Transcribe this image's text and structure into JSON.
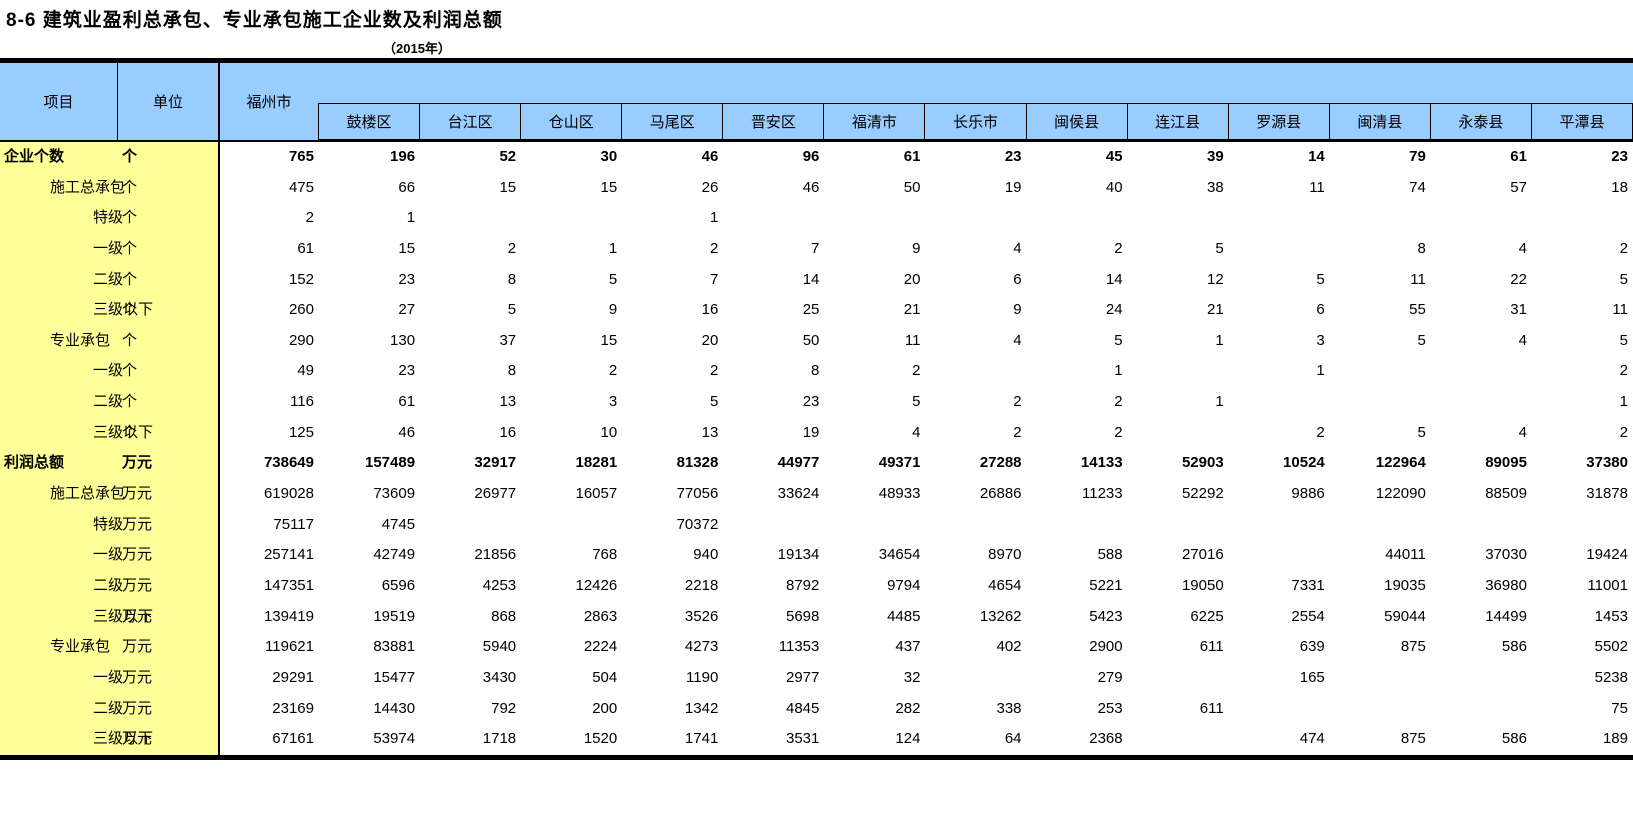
{
  "title": "8-6 建筑业盈利总承包、专业承包施工企业数及利润总额",
  "subtitle": "（2015年）",
  "colors": {
    "header_bg": "#99CCFF",
    "label_bg": "#FFFF99",
    "border": "#000000",
    "text": "#000000"
  },
  "header": {
    "item_label": "项目",
    "unit_label": "单位",
    "city_label": "福州市",
    "districts": [
      "鼓楼区",
      "台江区",
      "仓山区",
      "马尾区",
      "晋安区",
      "福清市",
      "长乐市",
      "闽侯县",
      "连江县",
      "罗源县",
      "闽清县",
      "永泰县",
      "平潭县"
    ]
  },
  "table": {
    "columns": [
      "福州市",
      "鼓楼区",
      "台江区",
      "仓山区",
      "马尾区",
      "晋安区",
      "福清市",
      "长乐市",
      "闽侯县",
      "连江县",
      "罗源县",
      "闽清县",
      "永泰县",
      "平潭县"
    ],
    "rows": [
      {
        "label": "企业个数",
        "unit": "个",
        "level": 0,
        "bold": true,
        "values": [
          "765",
          "196",
          "52",
          "30",
          "46",
          "96",
          "61",
          "23",
          "45",
          "39",
          "14",
          "79",
          "61",
          "23"
        ]
      },
      {
        "label": "施工总承包",
        "unit": "个",
        "level": 1,
        "bold": false,
        "values": [
          "475",
          "66",
          "15",
          "15",
          "26",
          "46",
          "50",
          "19",
          "40",
          "38",
          "11",
          "74",
          "57",
          "18"
        ]
      },
      {
        "label": "特级",
        "unit": "个",
        "level": 2,
        "bold": false,
        "values": [
          "2",
          "1",
          "",
          "",
          "1",
          "",
          "",
          "",
          "",
          "",
          "",
          "",
          "",
          ""
        ]
      },
      {
        "label": "一级",
        "unit": "个",
        "level": 2,
        "bold": false,
        "values": [
          "61",
          "15",
          "2",
          "1",
          "2",
          "7",
          "9",
          "4",
          "2",
          "5",
          "",
          "8",
          "4",
          "2"
        ]
      },
      {
        "label": "二级",
        "unit": "个",
        "level": 2,
        "bold": false,
        "values": [
          "152",
          "23",
          "8",
          "5",
          "7",
          "14",
          "20",
          "6",
          "14",
          "12",
          "5",
          "11",
          "22",
          "5"
        ]
      },
      {
        "label": "三级以下",
        "unit": "个",
        "level": 2,
        "bold": false,
        "values": [
          "260",
          "27",
          "5",
          "9",
          "16",
          "25",
          "21",
          "9",
          "24",
          "21",
          "6",
          "55",
          "31",
          "11"
        ]
      },
      {
        "label": "专业承包",
        "unit": "个",
        "level": 1,
        "bold": false,
        "values": [
          "290",
          "130",
          "37",
          "15",
          "20",
          "50",
          "11",
          "4",
          "5",
          "1",
          "3",
          "5",
          "4",
          "5"
        ]
      },
      {
        "label": "一级",
        "unit": "个",
        "level": 2,
        "bold": false,
        "values": [
          "49",
          "23",
          "8",
          "2",
          "2",
          "8",
          "2",
          "",
          "1",
          "",
          "1",
          "",
          "",
          "2"
        ]
      },
      {
        "label": "二级",
        "unit": "个",
        "level": 2,
        "bold": false,
        "values": [
          "116",
          "61",
          "13",
          "3",
          "5",
          "23",
          "5",
          "2",
          "2",
          "1",
          "",
          "",
          "",
          "1"
        ]
      },
      {
        "label": "三级以下",
        "unit": "个",
        "level": 2,
        "bold": false,
        "values": [
          "125",
          "46",
          "16",
          "10",
          "13",
          "19",
          "4",
          "2",
          "2",
          "",
          "2",
          "5",
          "4",
          "2"
        ]
      },
      {
        "label": "利润总额",
        "unit": "万元",
        "level": 0,
        "bold": true,
        "values": [
          "738649",
          "157489",
          "32917",
          "18281",
          "81328",
          "44977",
          "49371",
          "27288",
          "14133",
          "52903",
          "10524",
          "122964",
          "89095",
          "37380"
        ]
      },
      {
        "label": "施工总承包",
        "unit": "万元",
        "level": 1,
        "bold": false,
        "values": [
          "619028",
          "73609",
          "26977",
          "16057",
          "77056",
          "33624",
          "48933",
          "26886",
          "11233",
          "52292",
          "9886",
          "122090",
          "88509",
          "31878"
        ]
      },
      {
        "label": "特级",
        "unit": "万元",
        "level": 2,
        "bold": false,
        "values": [
          "75117",
          "4745",
          "",
          "",
          "70372",
          "",
          "",
          "",
          "",
          "",
          "",
          "",
          "",
          ""
        ]
      },
      {
        "label": "一级",
        "unit": "万元",
        "level": 2,
        "bold": false,
        "values": [
          "257141",
          "42749",
          "21856",
          "768",
          "940",
          "19134",
          "34654",
          "8970",
          "588",
          "27016",
          "",
          "44011",
          "37030",
          "19424"
        ]
      },
      {
        "label": "二级",
        "unit": "万元",
        "level": 2,
        "bold": false,
        "values": [
          "147351",
          "6596",
          "4253",
          "12426",
          "2218",
          "8792",
          "9794",
          "4654",
          "5221",
          "19050",
          "7331",
          "19035",
          "36980",
          "11001"
        ]
      },
      {
        "label": "三级以下",
        "unit": "万元",
        "level": 2,
        "bold": false,
        "values": [
          "139419",
          "19519",
          "868",
          "2863",
          "3526",
          "5698",
          "4485",
          "13262",
          "5423",
          "6225",
          "2554",
          "59044",
          "14499",
          "1453"
        ]
      },
      {
        "label": "专业承包",
        "unit": "万元",
        "level": 1,
        "bold": false,
        "values": [
          "119621",
          "83881",
          "5940",
          "2224",
          "4273",
          "11353",
          "437",
          "402",
          "2900",
          "611",
          "639",
          "875",
          "586",
          "5502"
        ]
      },
      {
        "label": "一级",
        "unit": "万元",
        "level": 2,
        "bold": false,
        "values": [
          "29291",
          "15477",
          "3430",
          "504",
          "1190",
          "2977",
          "32",
          "",
          "279",
          "",
          "165",
          "",
          "",
          "5238"
        ]
      },
      {
        "label": "二级",
        "unit": "万元",
        "level": 2,
        "bold": false,
        "values": [
          "23169",
          "14430",
          "792",
          "200",
          "1342",
          "4845",
          "282",
          "338",
          "253",
          "611",
          "",
          "",
          "",
          "75"
        ]
      },
      {
        "label": "三级以下",
        "unit": "万元",
        "level": 2,
        "bold": false,
        "values": [
          "67161",
          "53974",
          "1718",
          "1520",
          "1741",
          "3531",
          "124",
          "64",
          "2368",
          "",
          "474",
          "875",
          "586",
          "189"
        ]
      }
    ]
  }
}
